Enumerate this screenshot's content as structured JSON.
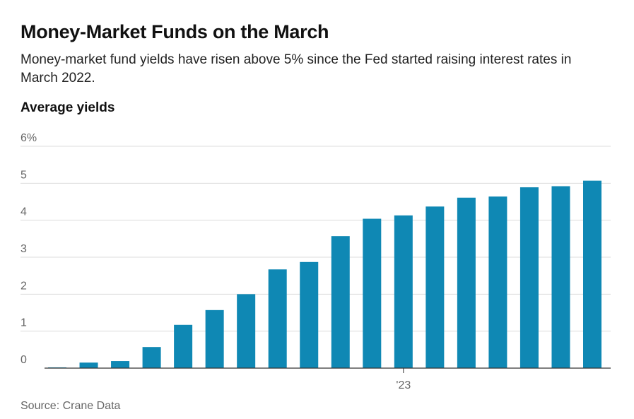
{
  "header": {
    "title": "Money-Market Funds on the March",
    "subtitle": "Money-market fund yields have risen above 5% since the Fed started raising interest rates in March 2022.",
    "chart_label": "Average yields"
  },
  "footer": {
    "source": "Source: Crane Data"
  },
  "colors": {
    "bar": "#0f88b4",
    "grid": "#dcdcdc",
    "baseline": "#333333"
  },
  "chart_data": {
    "type": "bar",
    "title": "Money-Market Funds on the March",
    "subtitle": "Money-market fund yields have risen above 5% since the Fed started raising interest rates in March 2022.",
    "ylabel": "Average yields",
    "xlabel": "",
    "ylim": [
      0,
      6
    ],
    "yticks": [
      0,
      1,
      2,
      3,
      4,
      5,
      6
    ],
    "ytick_labels": [
      "0",
      "1",
      "2",
      "3",
      "4",
      "5",
      "6%"
    ],
    "x_tick_labels": [
      {
        "index": 11,
        "label": "'23"
      }
    ],
    "values": [
      0.02,
      0.15,
      0.19,
      0.57,
      1.17,
      1.57,
      2.0,
      2.67,
      2.87,
      3.57,
      4.04,
      4.13,
      4.37,
      4.61,
      4.64,
      4.89,
      4.92,
      5.07
    ],
    "grid": true
  }
}
